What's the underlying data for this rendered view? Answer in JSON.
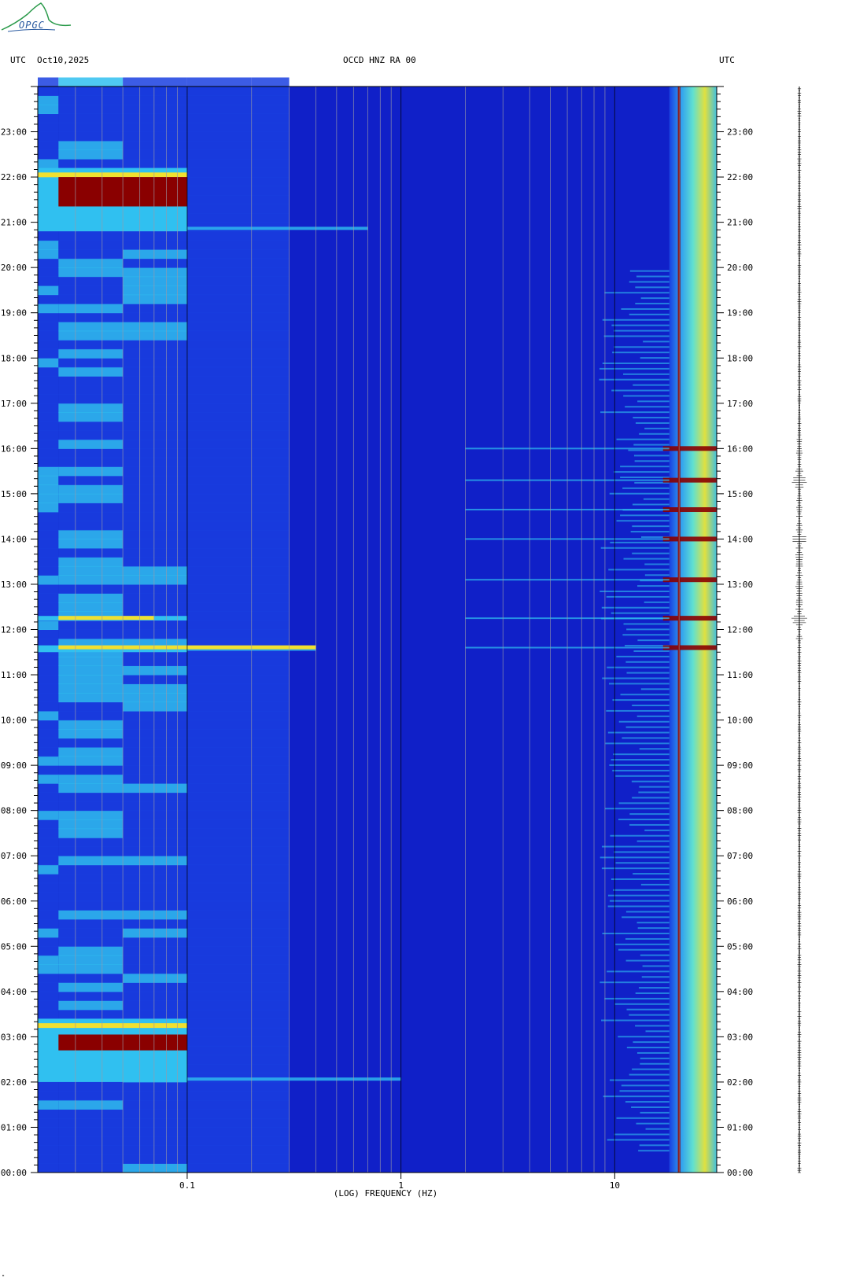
{
  "header": {
    "left_tz": "UTC",
    "date": "Oct10,2025",
    "station": "OCCD HNZ RA 00",
    "right_tz": "UTC"
  },
  "logo": {
    "text": "OPGC",
    "color": "#2a9a4a"
  },
  "corner_mark": "\"",
  "colors": {
    "background": "#1020c8",
    "low": "#1a40e0",
    "mid": "#30c0f0",
    "high": "#f0e030",
    "peak": "#8a0000"
  },
  "chart_data": {
    "type": "heatmap",
    "xlabel": "(LOG) FREQUENCY (HZ)",
    "x_scale": "log",
    "xlim_hz": [
      0.02,
      30
    ],
    "x_ticks": [
      {
        "value": 0.1,
        "label": "0.1"
      },
      {
        "value": 1,
        "label": "1"
      },
      {
        "value": 10,
        "label": "10"
      }
    ],
    "ylim_hours": [
      0,
      24
    ],
    "y_ticks": [
      {
        "hour": 0,
        "label": "00:00"
      },
      {
        "hour": 1,
        "label": "01:00"
      },
      {
        "hour": 2,
        "label": "02:00"
      },
      {
        "hour": 3,
        "label": "03:00"
      },
      {
        "hour": 4,
        "label": "04:00"
      },
      {
        "hour": 5,
        "label": "05:00"
      },
      {
        "hour": 6,
        "label": "06:00"
      },
      {
        "hour": 7,
        "label": "07:00"
      },
      {
        "hour": 8,
        "label": "08:00"
      },
      {
        "hour": 9,
        "label": "09:00"
      },
      {
        "hour": 10,
        "label": "10:00"
      },
      {
        "hour": 11,
        "label": "11:00"
      },
      {
        "hour": 12,
        "label": "12:00"
      },
      {
        "hour": 13,
        "label": "13:00"
      },
      {
        "hour": 14,
        "label": "14:00"
      },
      {
        "hour": 15,
        "label": "15:00"
      },
      {
        "hour": 16,
        "label": "16:00"
      },
      {
        "hour": 17,
        "label": "17:00"
      },
      {
        "hour": 18,
        "label": "18:00"
      },
      {
        "hour": 19,
        "label": "19:00"
      },
      {
        "hour": 20,
        "label": "20:00"
      },
      {
        "hour": 21,
        "label": "21:00"
      },
      {
        "hour": 22,
        "label": "22:00"
      },
      {
        "hour": 23,
        "label": "23:00"
      }
    ],
    "gridlines_hz": [
      0.02,
      0.03,
      0.04,
      0.05,
      0.06,
      0.07,
      0.08,
      0.09,
      0.1,
      0.2,
      0.3,
      0.4,
      0.5,
      0.6,
      0.7,
      0.8,
      0.9,
      1,
      2,
      3,
      4,
      5,
      6,
      7,
      8,
      9,
      10,
      20
    ],
    "low_freq_bands": [
      {
        "f0": 0.02,
        "f1": 0.025,
        "level": 0.35
      },
      {
        "f0": 0.025,
        "f1": 0.05,
        "level": 0.45
      },
      {
        "f0": 0.05,
        "f1": 0.1,
        "level": 0.35
      },
      {
        "f0": 0.1,
        "f1": 0.2,
        "level": 0.25
      },
      {
        "f0": 0.2,
        "f1": 0.3,
        "level": 0.15
      }
    ],
    "events": [
      {
        "name": "event-2100",
        "start_h": 20.8,
        "end_h": 22.2,
        "peak_start_h": 21.35,
        "peak_end_h": 22.0,
        "fmax_hz": 0.7
      },
      {
        "name": "event-0200",
        "start_h": 2.0,
        "end_h": 3.4,
        "peak_start_h": 2.7,
        "peak_end_h": 3.05,
        "fmax_hz": 1.0
      },
      {
        "name": "event-1215",
        "start_h": 12.2,
        "end_h": 12.3,
        "peak_start_h": 0,
        "peak_end_h": 0,
        "fmax_hz": 0.07
      },
      {
        "name": "event-1140",
        "start_h": 11.5,
        "end_h": 11.65,
        "peak_start_h": 0,
        "peak_end_h": 0,
        "fmax_hz": 0.4
      }
    ],
    "high_freq_bursts_h": [
      12.25,
      13.1,
      14.0,
      14.65,
      15.3,
      16.0,
      11.6
    ],
    "high_band_hz": [
      18,
      30
    ],
    "persistent_line_hz": 20
  }
}
